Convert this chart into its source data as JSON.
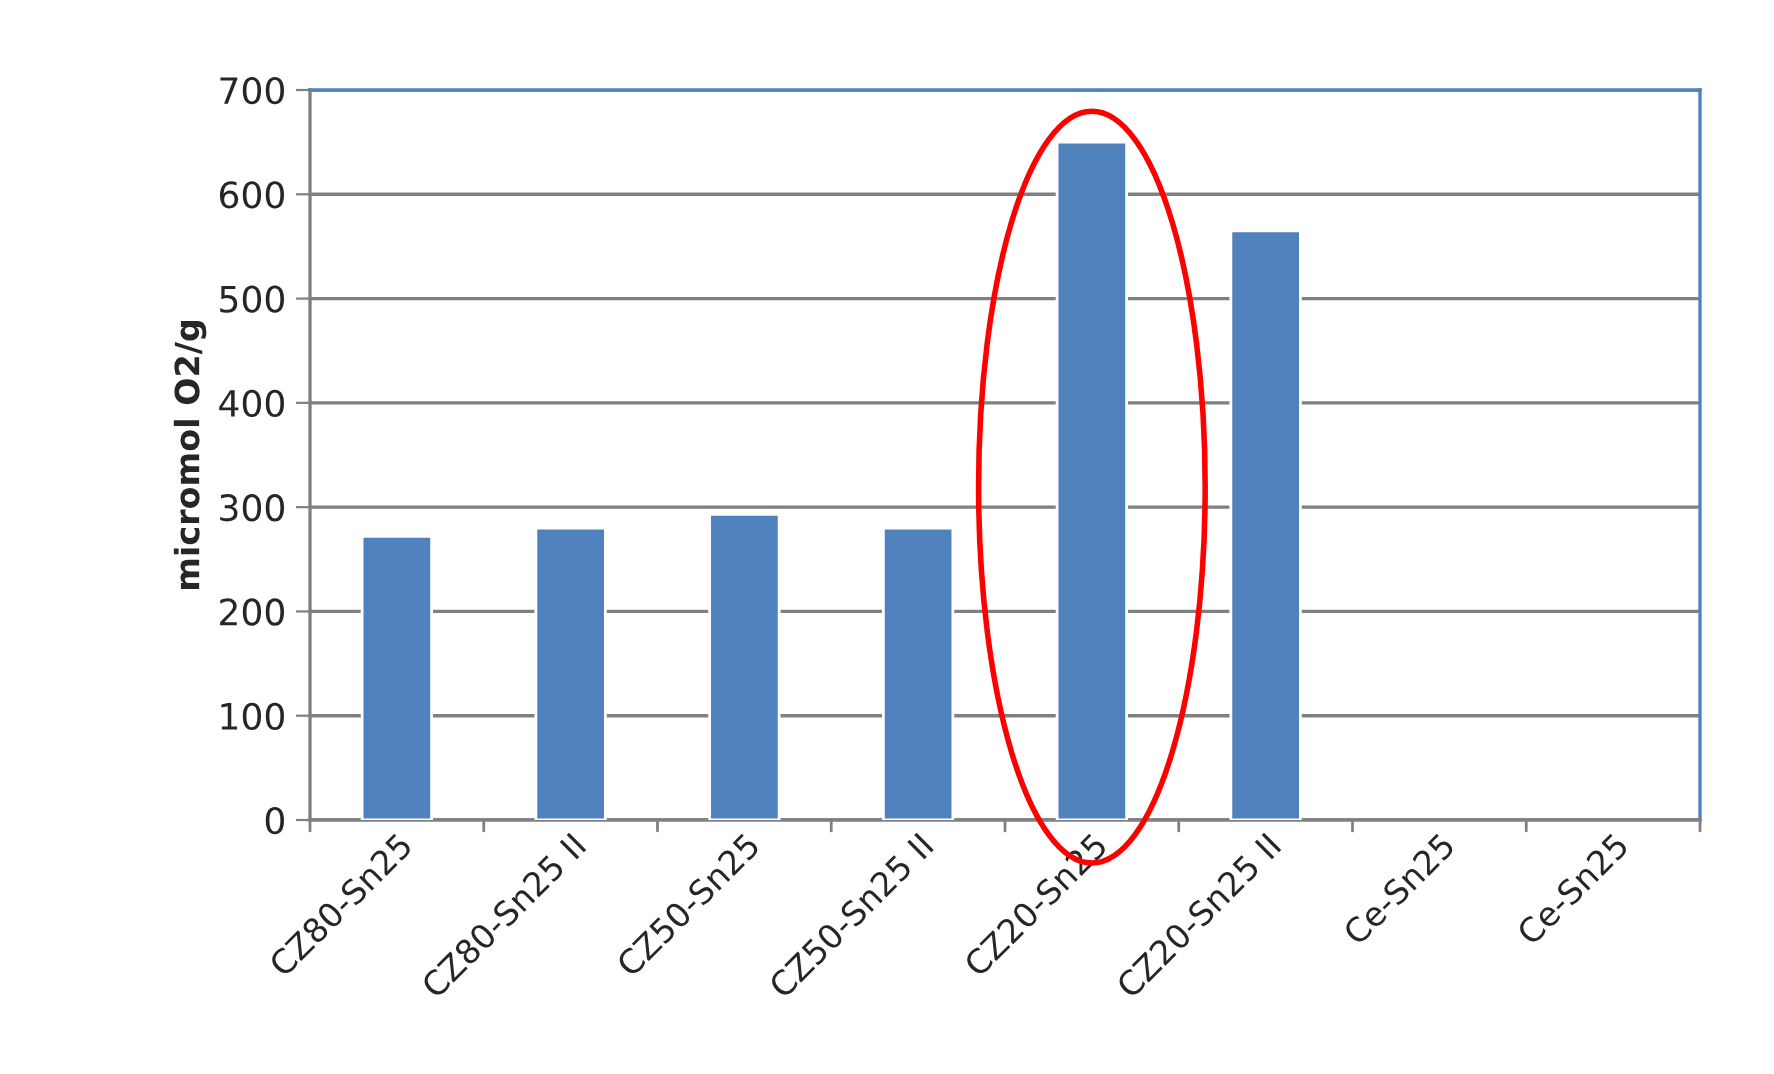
{
  "chart_data": {
    "type": "bar",
    "ylabel": "micromol O2/g",
    "categories": [
      "CZ80-Sn25",
      "CZ80-Sn25 II",
      "CZ50-Sn25",
      "CZ50-Sn25 II",
      "CZ20-Sn25",
      "CZ20-Sn25 II",
      "Ce-Sn25",
      "Ce-Sn25"
    ],
    "values": [
      272,
      280,
      293,
      280,
      650,
      565,
      null,
      null
    ],
    "color": "#4f81bd",
    "ylim": [
      0,
      700
    ],
    "yticks": [
      0,
      100,
      200,
      300,
      400,
      500,
      600,
      700
    ],
    "grid": "y",
    "legend": false
  }
}
